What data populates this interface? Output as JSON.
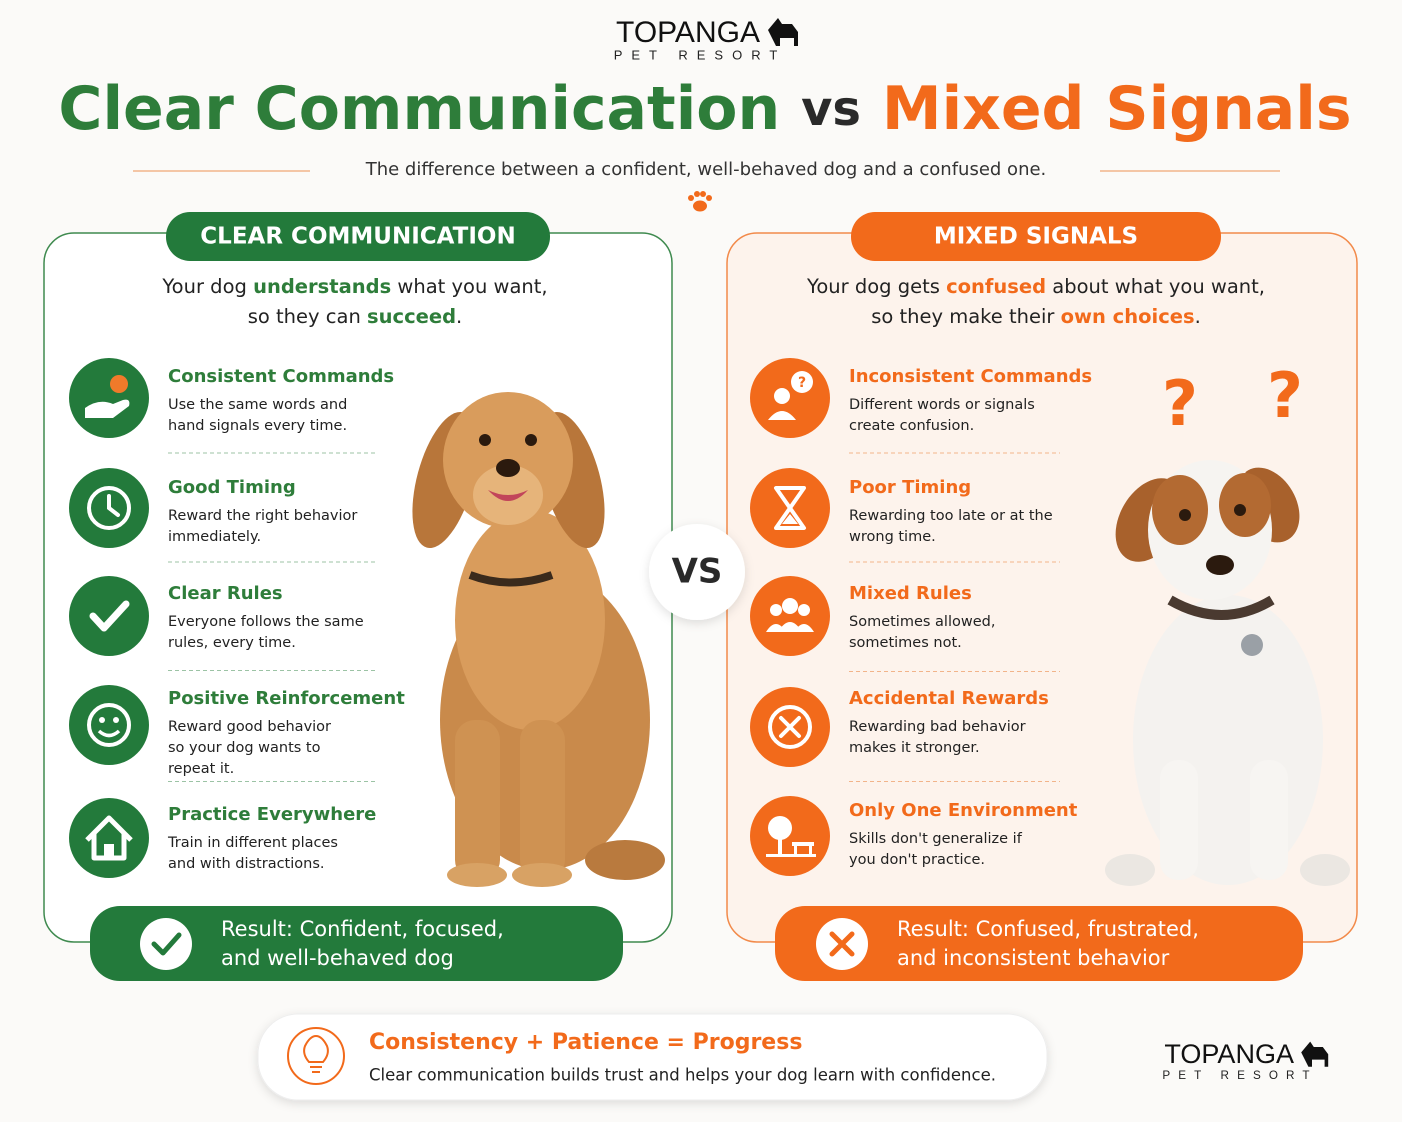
{
  "logo": {
    "name": "TOPANGA",
    "tagline": "PET RESORT"
  },
  "title": {
    "left": "Clear Communication",
    "middle": "vs",
    "right": "Mixed Signals"
  },
  "subtitle": "The difference between a confident, well-behaved dog and a confused one.",
  "vs": "VS",
  "question_marks": [
    "?",
    "?"
  ],
  "panels": [
    {
      "heading": "CLEAR COMMUNICATION",
      "intro": [
        [
          "Your dog ",
          "understands",
          " what you want,"
        ],
        [
          "so they can ",
          "succeed",
          "."
        ]
      ],
      "items": [
        {
          "title": "Consistent Commands",
          "description": [
            "Use the same words and",
            "hand signals every time."
          ]
        },
        {
          "title": "Good Timing",
          "description": [
            "Reward the right behavior",
            "immediately."
          ]
        },
        {
          "title": "Clear Rules",
          "description": [
            "Everyone follows the same",
            "rules, every time."
          ]
        },
        {
          "title": "Positive Reinforcement",
          "description": [
            "Reward good behavior",
            "so your dog wants to",
            "repeat it."
          ]
        },
        {
          "title": "Practice Everywhere",
          "description": [
            "Train in different places",
            "and with distractions."
          ]
        }
      ],
      "result": [
        "Result: Confident, focused,",
        "and well-behaved dog"
      ]
    },
    {
      "heading": "MIXED SIGNALS",
      "intro": [
        [
          "Your dog gets ",
          "confused",
          " about what you want,"
        ],
        [
          "so they make their ",
          "own choices",
          "."
        ]
      ],
      "items": [
        {
          "title": "Inconsistent Commands",
          "description": [
            "Different words or signals",
            "create confusion."
          ]
        },
        {
          "title": "Poor Timing",
          "description": [
            "Rewarding too late or at the",
            "wrong time."
          ]
        },
        {
          "title": "Mixed Rules",
          "description": [
            "Sometimes allowed,",
            "sometimes not."
          ]
        },
        {
          "title": "Accidental Rewards",
          "description": [
            "Rewarding bad behavior",
            "makes it stronger."
          ]
        },
        {
          "title": "Only One Environment",
          "description": [
            "Skills don't generalize if",
            "you don't practice."
          ]
        }
      ],
      "result": [
        "Result: Confused, frustrated,",
        "and inconsistent behavior"
      ]
    }
  ],
  "footer": {
    "title": "Consistency + Patience = Progress",
    "text": "Clear communication builds trust and helps your dog learn with confidence."
  },
  "footer_logo": {
    "name": "TOPANGA",
    "tagline": "PET RESORT"
  }
}
